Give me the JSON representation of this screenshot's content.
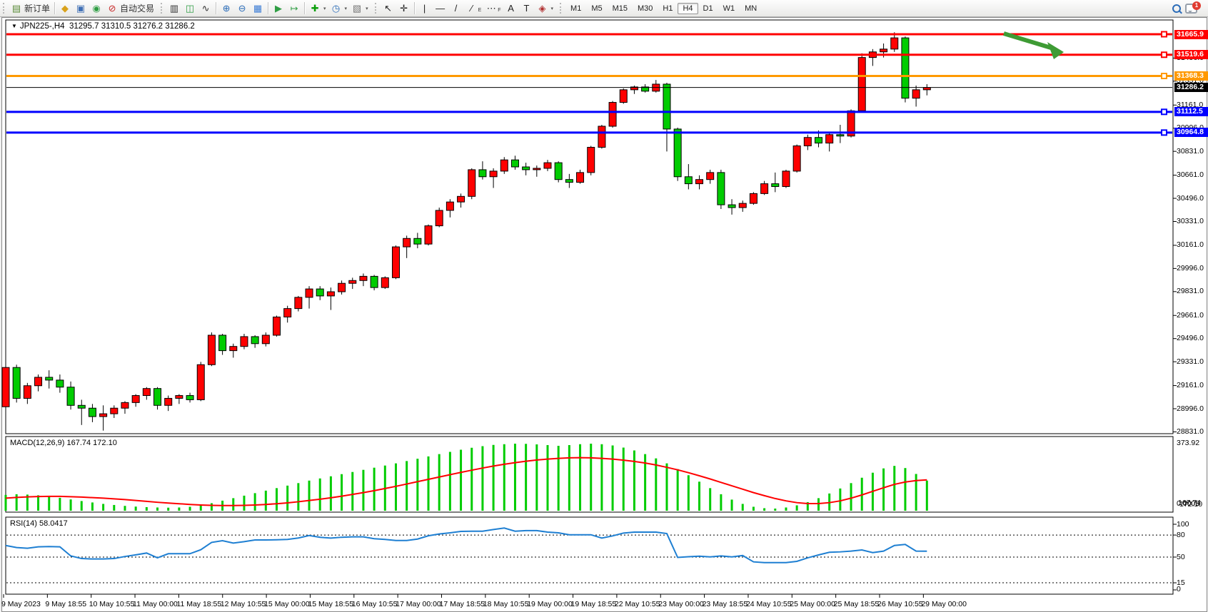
{
  "toolbar": {
    "new_order_label": "新订单",
    "autotrade_label": "自动交易",
    "timeframes": [
      "M1",
      "M5",
      "M15",
      "M30",
      "H1",
      "H4",
      "D1",
      "W1",
      "MN"
    ],
    "active_timeframe": "H4",
    "notification_count": "1",
    "icons": {
      "new_order": "▤",
      "bucket": "◆",
      "editor": "▣",
      "signal": "◉",
      "autotrade": "⊘",
      "bars": "▥",
      "candles": "◫",
      "line_chart": "∿",
      "zoom_in": "⊕",
      "zoom_out": "⊖",
      "tile": "▦",
      "autoscroll": "▶",
      "shift": "↦",
      "indicators": "✚",
      "periods": "◷",
      "templates": "▧",
      "cursor": "↖",
      "crosshair": "✛",
      "vline": "|",
      "hline": "—",
      "trendline": "/",
      "fibo": "⁄",
      "fibo_sub": "E",
      "channel": "⋯",
      "channel_sub": "F",
      "text": "A",
      "label": "T",
      "shapes": "◈",
      "caret": "▾",
      "dropdown": "▼"
    }
  },
  "chart": {
    "symbol_title": "JPN225-,H4",
    "ohlc_text": "31295.7 31310.5 31276.2 31286.2",
    "marker_triangle": "▼"
  },
  "chart_data": {
    "type": "candlestick",
    "symbol": "JPN225-",
    "timeframe": "H4",
    "ohlc_display": {
      "open": "31295.7",
      "high": "31310.5",
      "low": "31276.2",
      "close": "31286.2"
    },
    "colors": {
      "bull": "#FF0000",
      "bear": "#00CC00",
      "wick": "#000000",
      "macd_hist": "#00CC00",
      "macd_signal": "#FF0000",
      "rsi_line": "#1E7FD2",
      "arrow": "#3E9B34",
      "current_badge": "#000000"
    },
    "current_price": 31286.2,
    "current_price_label": "31286.2",
    "hlines": [
      {
        "price": 31665.9,
        "label": "31665.9",
        "color": "#FF0000"
      },
      {
        "price": 31519.6,
        "label": "31519.6",
        "color": "#FF0000"
      },
      {
        "price": 31368.3,
        "label": "31368.3",
        "color": "#FF9900"
      },
      {
        "price": 31112.5,
        "label": "31112.5",
        "color": "#0000FF"
      },
      {
        "price": 30964.8,
        "label": "30964.8",
        "color": "#0000FF"
      }
    ],
    "price_ticks": [
      "31496.0",
      "31331.0",
      "31161.0",
      "30996.0",
      "30831.0",
      "30661.0",
      "30496.0",
      "30331.0",
      "30161.0",
      "29996.0",
      "29831.0",
      "29661.0",
      "29496.0",
      "29331.0",
      "29161.0",
      "28996.0",
      "28831.0"
    ],
    "x_labels": [
      "9 May 2023",
      "9 May 18:55",
      "10 May 10:55",
      "11 May 00:00",
      "11 May 18:55",
      "12 May 10:55",
      "15 May 00:00",
      "15 May 18:55",
      "16 May 10:55",
      "17 May 00:00",
      "17 May 18:55",
      "18 May 10:55",
      "19 May 00:00",
      "19 May 18:55",
      "22 May 10:55",
      "23 May 00:00",
      "23 May 18:55",
      "24 May 10:55",
      "25 May 00:00",
      "25 May 18:55",
      "26 May 10:55",
      "29 May 00:00"
    ],
    "candles": [
      [
        29010,
        29330,
        28980,
        29290
      ],
      [
        29290,
        29310,
        29040,
        29070
      ],
      [
        29070,
        29180,
        29030,
        29160
      ],
      [
        29160,
        29240,
        29120,
        29220
      ],
      [
        29220,
        29270,
        29140,
        29200
      ],
      [
        29200,
        29240,
        29110,
        29150
      ],
      [
        29150,
        29190,
        28990,
        29020
      ],
      [
        29020,
        29060,
        28880,
        29000
      ],
      [
        29000,
        29030,
        28900,
        28940
      ],
      [
        28940,
        29020,
        28840,
        28960
      ],
      [
        28960,
        29020,
        28930,
        29000
      ],
      [
        29000,
        29050,
        28960,
        29040
      ],
      [
        29040,
        29100,
        29010,
        29090
      ],
      [
        29090,
        29150,
        29060,
        29140
      ],
      [
        29140,
        29150,
        28990,
        29020
      ],
      [
        29020,
        29090,
        28980,
        29070
      ],
      [
        29070,
        29100,
        29030,
        29090
      ],
      [
        29090,
        29110,
        29040,
        29060
      ],
      [
        29060,
        29330,
        29050,
        29310
      ],
      [
        29310,
        29540,
        29300,
        29520
      ],
      [
        29520,
        29530,
        29380,
        29410
      ],
      [
        29410,
        29460,
        29360,
        29440
      ],
      [
        29440,
        29530,
        29420,
        29510
      ],
      [
        29510,
        29520,
        29430,
        29460
      ],
      [
        29460,
        29540,
        29440,
        29520
      ],
      [
        29520,
        29660,
        29510,
        29650
      ],
      [
        29650,
        29730,
        29610,
        29710
      ],
      [
        29710,
        29800,
        29690,
        29790
      ],
      [
        29790,
        29870,
        29710,
        29850
      ],
      [
        29850,
        29870,
        29770,
        29800
      ],
      [
        29800,
        29860,
        29700,
        29830
      ],
      [
        29830,
        29910,
        29810,
        29890
      ],
      [
        29890,
        29930,
        29850,
        29910
      ],
      [
        29910,
        29960,
        29870,
        29940
      ],
      [
        29940,
        29950,
        29840,
        29860
      ],
      [
        29860,
        29940,
        29850,
        29930
      ],
      [
        29930,
        30160,
        29920,
        30150
      ],
      [
        30150,
        30230,
        30070,
        30210
      ],
      [
        30210,
        30250,
        30140,
        30170
      ],
      [
        30170,
        30310,
        30160,
        30300
      ],
      [
        30300,
        30430,
        30290,
        30410
      ],
      [
        30410,
        30490,
        30360,
        30470
      ],
      [
        30470,
        30530,
        30430,
        30510
      ],
      [
        30510,
        30710,
        30490,
        30700
      ],
      [
        30700,
        30760,
        30630,
        30650
      ],
      [
        30650,
        30710,
        30570,
        30690
      ],
      [
        30690,
        30790,
        30670,
        30770
      ],
      [
        30770,
        30800,
        30700,
        30720
      ],
      [
        30720,
        30750,
        30660,
        30700
      ],
      [
        30700,
        30730,
        30650,
        30710
      ],
      [
        30710,
        30770,
        30690,
        30750
      ],
      [
        30750,
        30760,
        30610,
        30630
      ],
      [
        30630,
        30670,
        30570,
        30610
      ],
      [
        30610,
        30700,
        30600,
        30680
      ],
      [
        30680,
        30870,
        30660,
        30860
      ],
      [
        30860,
        31020,
        30850,
        31010
      ],
      [
        31010,
        31190,
        31000,
        31180
      ],
      [
        31180,
        31280,
        31170,
        31270
      ],
      [
        31270,
        31300,
        31240,
        31290
      ],
      [
        31290,
        31310,
        31250,
        31260
      ],
      [
        31260,
        31340,
        31250,
        31310
      ],
      [
        31310,
        31320,
        30830,
        30990
      ],
      [
        30990,
        31000,
        30620,
        30650
      ],
      [
        30650,
        30740,
        30560,
        30600
      ],
      [
        30600,
        30660,
        30560,
        30630
      ],
      [
        30630,
        30700,
        30600,
        30680
      ],
      [
        30680,
        30700,
        30420,
        30450
      ],
      [
        30450,
        30490,
        30380,
        30430
      ],
      [
        30430,
        30480,
        30400,
        30460
      ],
      [
        30460,
        30540,
        30450,
        30530
      ],
      [
        30530,
        30620,
        30520,
        30600
      ],
      [
        30600,
        30680,
        30540,
        30580
      ],
      [
        30580,
        30700,
        30570,
        30690
      ],
      [
        30690,
        30880,
        30680,
        30870
      ],
      [
        30870,
        30950,
        30840,
        30930
      ],
      [
        30930,
        30980,
        30860,
        30890
      ],
      [
        30890,
        30970,
        30830,
        30950
      ],
      [
        30950,
        31020,
        30890,
        30940
      ],
      [
        30940,
        31130,
        30930,
        31120
      ],
      [
        31120,
        31530,
        31110,
        31500
      ],
      [
        31500,
        31560,
        31440,
        31540
      ],
      [
        31540,
        31600,
        31500,
        31560
      ],
      [
        31560,
        31680,
        31540,
        31640
      ],
      [
        31640,
        31650,
        31180,
        31210
      ],
      [
        31210,
        31300,
        31150,
        31270
      ],
      [
        31270,
        31310,
        31230,
        31286.2
      ]
    ],
    "macd": {
      "label": "MACD(12,26,9)",
      "values_text": "167.74 172.10",
      "value_main": "167.74",
      "value_signal": "172.10",
      "max_label": "373.92",
      "min_label": "0.0005",
      "hist": [
        88,
        92,
        90,
        86,
        80,
        72,
        63,
        54,
        46,
        38,
        32,
        27,
        23,
        20,
        18,
        17,
        18,
        22,
        30,
        42,
        56,
        70,
        84,
        98,
        112,
        126,
        140,
        154,
        168,
        180,
        192,
        204,
        216,
        228,
        240,
        252,
        264,
        277,
        290,
        303,
        316,
        328,
        340,
        351,
        360,
        367,
        371,
        374,
        373,
        370,
        366,
        362,
        366,
        371,
        374,
        371,
        364,
        352,
        336,
        316,
        292,
        264,
        232,
        198,
        162,
        126,
        92,
        62,
        38,
        22,
        14,
        12,
        18,
        30,
        48,
        70,
        96,
        124,
        154,
        184,
        212,
        236,
        250,
        238,
        205,
        168
      ],
      "signal": [
        70,
        74,
        77,
        79,
        80,
        80,
        78,
        76,
        73,
        70,
        66,
        62,
        57,
        52,
        47,
        43,
        39,
        35,
        32,
        30,
        29,
        29,
        30,
        32,
        35,
        39,
        44,
        50,
        57,
        64,
        72,
        81,
        91,
        101,
        112,
        124,
        136,
        149,
        162,
        175,
        188,
        201,
        214,
        226,
        238,
        249,
        259,
        268,
        276,
        283,
        288,
        292,
        295,
        296,
        295,
        292,
        288,
        282,
        275,
        266,
        255,
        242,
        228,
        212,
        195,
        177,
        158,
        139,
        120,
        101,
        84,
        68,
        55,
        45,
        40,
        40,
        45,
        55,
        70,
        88,
        108,
        128,
        147,
        160,
        168,
        172
      ]
    },
    "rsi": {
      "label": "RSI(14)",
      "value_text": "58.0417",
      "levels": [
        "100",
        "80",
        "50",
        "15",
        "0"
      ],
      "dashed_levels": [
        80,
        50,
        15
      ],
      "series": [
        65.8,
        63,
        62,
        64,
        64.3,
        64,
        51.6,
        48,
        47.4,
        47.4,
        48,
        50.8,
        53,
        55.5,
        49,
        54.6,
        54.6,
        54.6,
        60,
        70,
        72.3,
        69.1,
        71,
        73.3,
        73.3,
        73.5,
        74,
        76,
        79.4,
        76.9,
        75.9,
        77,
        77.5,
        77.5,
        75,
        74,
        72.6,
        72.6,
        74.5,
        79,
        81.4,
        83,
        85,
        85.2,
        85.2,
        87.5,
        89.5,
        85.2,
        86,
        86,
        84,
        83,
        80.4,
        80.4,
        80.4,
        75.9,
        78.8,
        82.7,
        84,
        84,
        84,
        82,
        49.5,
        50.5,
        51.2,
        50.2,
        51.6,
        50.2,
        52.1,
        43.5,
        42.5,
        42.5,
        42.5,
        44.2,
        49,
        52.9,
        56.5,
        57.1,
        58.1,
        59.7,
        56.1,
        58.1,
        65.8,
        67.2,
        58.1,
        58.0417
      ]
    },
    "annotation_arrow": {
      "color": "#3E9B34",
      "direction": "down-right"
    }
  }
}
